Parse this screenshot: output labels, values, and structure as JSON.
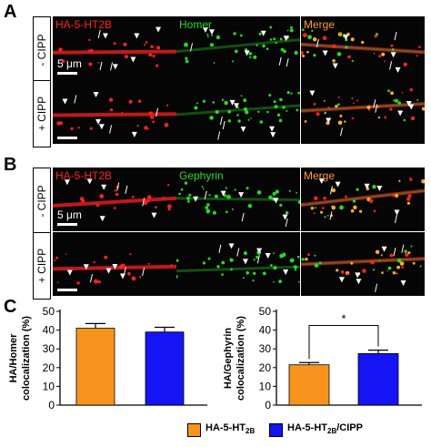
{
  "panels": {
    "A": {
      "letter": "A",
      "marker": "Homer",
      "rows": [
        "- CIPP",
        "+ CIPP"
      ],
      "channels": [
        "HA-5-HT2B",
        "Homer",
        "Merge"
      ],
      "scale_bar": "5 μm"
    },
    "B": {
      "letter": "B",
      "marker": "Gephyrin",
      "rows": [
        "- CIPP",
        "+ CIPP"
      ],
      "channels": [
        "HA-5-HT2B",
        "Gephyrin",
        "Merge"
      ],
      "scale_bar": "5 μm"
    },
    "C": {
      "letter": "C"
    }
  },
  "colors": {
    "red_channel": "#ff2020",
    "green_channel": "#22dd22",
    "merge_label": "#ff9a2e",
    "orange_bar": "#f7941d",
    "blue_bar": "#1414f5"
  },
  "chart_data": [
    {
      "type": "bar",
      "ylabel": "HA/Homer\ncolocalization (%)",
      "categories": [
        "HA-5-HT2B",
        "HA-5-HT2B/CIPP"
      ],
      "values": [
        41,
        39
      ],
      "errors": [
        2.5,
        2.5
      ],
      "ylim": [
        0,
        50
      ],
      "yticks": [
        0,
        10,
        20,
        30,
        40,
        50
      ],
      "significance": null
    },
    {
      "type": "bar",
      "ylabel": "HA/Gephyrin\ncolocalization (%)",
      "categories": [
        "HA-5-HT2B",
        "HA-5-HT2B/CIPP"
      ],
      "values": [
        21.5,
        27.5
      ],
      "errors": [
        1.2,
        1.8
      ],
      "ylim": [
        0,
        50
      ],
      "yticks": [
        0,
        10,
        20,
        30,
        40,
        50
      ],
      "significance": "*"
    }
  ],
  "legend": [
    {
      "base": "HA-5-HT",
      "sub": "2B",
      "suffix": "",
      "color": "#f7941d"
    },
    {
      "base": "HA-5-HT",
      "sub": "2B",
      "suffix": "/CIPP",
      "color": "#1414f5"
    }
  ]
}
